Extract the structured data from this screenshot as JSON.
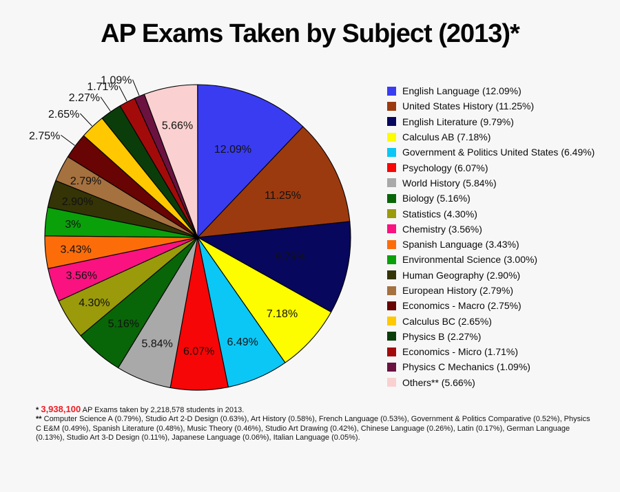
{
  "title": "AP Exams Taken by Subject (2013)*",
  "colors": {
    "background": "#F7F7F7",
    "footnote_accent_red": "#ED1C24",
    "slice_outline": "#000000",
    "label_text": "#111111"
  },
  "chart_data": {
    "type": "pie",
    "title": "AP Exams Taken by Subject (2013)*",
    "start_angle_deg": 0,
    "direction": "clockwise",
    "legend_position": "right",
    "total_pct": 100,
    "slices": [
      {
        "name": "English Language",
        "value": 12.09,
        "color": "#3A3CF2",
        "slice_label": "12.09%",
        "legend_label": "English Language (12.09%)",
        "label_outside": false
      },
      {
        "name": "United States History",
        "value": 11.25,
        "color": "#9C3A0F",
        "slice_label": "11.25%",
        "legend_label": "United States History (11.25%)",
        "label_outside": false
      },
      {
        "name": "English Literature",
        "value": 9.79,
        "color": "#07075E",
        "slice_label": "9.79%",
        "legend_label": "English Literature (9.79%)",
        "label_outside": false
      },
      {
        "name": "Calculus AB",
        "value": 7.18,
        "color": "#FDFD00",
        "slice_label": "7.18%",
        "legend_label": "Calculus AB (7.18%)",
        "label_outside": false
      },
      {
        "name": "Government & Politics United States",
        "value": 6.49,
        "color": "#0BC7F5",
        "slice_label": "6.49%",
        "legend_label": "Government & Politics United States (6.49%)",
        "label_outside": false
      },
      {
        "name": "Psychology",
        "value": 6.07,
        "color": "#F60606",
        "slice_label": "6.07%",
        "legend_label": "Psychology (6.07%)",
        "label_outside": false
      },
      {
        "name": "World History",
        "value": 5.84,
        "color": "#A9A9A9",
        "slice_label": "5.84%",
        "legend_label": "World History (5.84%)",
        "label_outside": false
      },
      {
        "name": "Biology",
        "value": 5.16,
        "color": "#086608",
        "slice_label": "5.16%",
        "legend_label": "Biology (5.16%)",
        "label_outside": false
      },
      {
        "name": "Statistics",
        "value": 4.3,
        "color": "#9A9A0B",
        "slice_label": "4.30%",
        "legend_label": "Statistics (4.30%)",
        "label_outside": false
      },
      {
        "name": "Chemistry",
        "value": 3.56,
        "color": "#FA1280",
        "slice_label": "3.56%",
        "legend_label": "Chemistry (3.56%)",
        "label_outside": false
      },
      {
        "name": "Spanish Language",
        "value": 3.43,
        "color": "#FC6D0A",
        "slice_label": "3.43%",
        "legend_label": "Spanish Language (3.43%)",
        "label_outside": false
      },
      {
        "name": "Environmental Science",
        "value": 3.0,
        "color": "#0AA00A",
        "slice_label": "3%",
        "legend_label": "Environmental Science (3.00%)",
        "label_outside": false
      },
      {
        "name": "Human Geography",
        "value": 2.9,
        "color": "#343407",
        "slice_label": "2.90%",
        "legend_label": "Human Geography (2.90%)",
        "label_outside": false
      },
      {
        "name": "European History",
        "value": 2.79,
        "color": "#A5713F",
        "slice_label": "2.79%",
        "legend_label": "European History (2.79%)",
        "label_outside": false
      },
      {
        "name": "Economics - Macro",
        "value": 2.75,
        "color": "#680404",
        "slice_label": "2.75%",
        "legend_label": "Economics - Macro (2.75%)",
        "label_outside": true
      },
      {
        "name": "Calculus BC",
        "value": 2.65,
        "color": "#FFC800",
        "slice_label": "2.65%",
        "legend_label": "Calculus BC (2.65%)",
        "label_outside": true
      },
      {
        "name": "Physics B",
        "value": 2.27,
        "color": "#0B3D0B",
        "slice_label": "2.27%",
        "legend_label": "Physics B (2.27%)",
        "label_outside": true
      },
      {
        "name": "Economics - Micro",
        "value": 1.71,
        "color": "#A30B0B",
        "slice_label": "1.71%",
        "legend_label": "Economics - Micro (1.71%)",
        "label_outside": true
      },
      {
        "name": "Physics C Mechanics",
        "value": 1.09,
        "color": "#6B1240",
        "slice_label": "1.09%",
        "legend_label": "Physics C Mechanics (1.09%)",
        "label_outside": true
      },
      {
        "name": "Others",
        "value": 5.66,
        "color": "#FAD1D0",
        "slice_label": "5.66%",
        "legend_label": "Others** (5.66%)",
        "label_outside": false
      }
    ]
  },
  "footnotes": {
    "star_prefix": "*",
    "total_exams": "3,938,100",
    "total_suffix": "AP Exams taken by 2,218,578 students in 2013.",
    "doublestar_prefix": "**",
    "others_detail": "Computer Science A (0.79%), Studio Art 2-D Design (0.63%), Art History (0.58%), French Language (0.53%), Government & Politics Comparative (0.52%), Physics C E&M (0.49%), Spanish Literature (0.48%), Music Theory (0.46%), Studio Art Drawing (0.42%), Chinese Language (0.26%), Latin (0.17%), German Language (0.13%), Studio Art 3-D Design (0.11%), Japanese Language (0.06%), Italian Language (0.05%)."
  }
}
